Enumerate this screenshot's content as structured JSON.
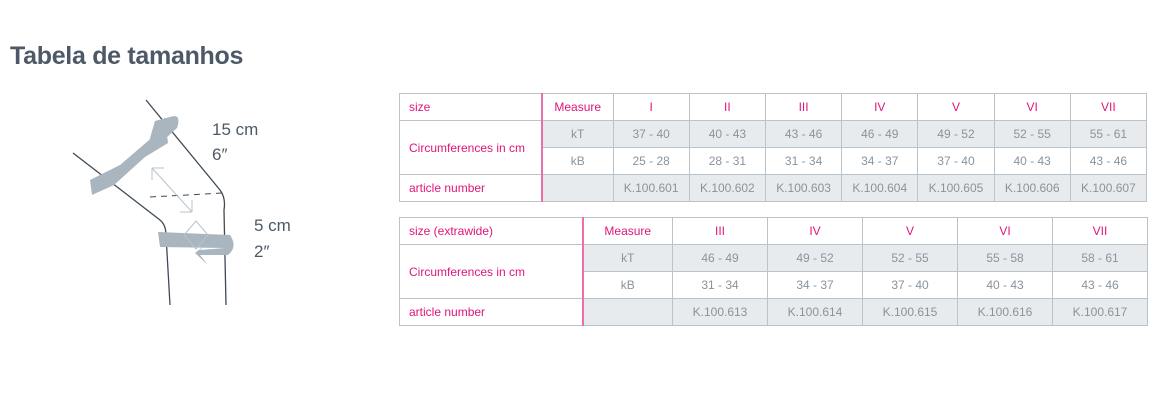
{
  "title": "Tabela de tamanhos",
  "illustration": {
    "upper_label_cm": "15 cm",
    "upper_label_in": "6″",
    "lower_label_cm": "5 cm",
    "lower_label_in": "2″"
  },
  "colors": {
    "accent": "#e0157a",
    "cell_fill": "#e8ebee",
    "text": "#8a939b",
    "border": "#b9c3cb"
  },
  "table1": {
    "header": [
      "size",
      "Measure",
      "I",
      "II",
      "III",
      "IV",
      "V",
      "VI",
      "VII"
    ],
    "circ_label": "Circumferences in cm",
    "kT": {
      "label": "kT",
      "values": [
        "37 - 40",
        "40 - 43",
        "43 - 46",
        "46 - 49",
        "49 - 52",
        "52 - 55",
        "55 - 61"
      ]
    },
    "kB": {
      "label": "kB",
      "values": [
        "25 - 28",
        "28 - 31",
        "31 - 34",
        "34 - 37",
        "37 - 40",
        "40 - 43",
        "43 - 46"
      ]
    },
    "article_label": "article number",
    "articles": [
      "K.100.601",
      "K.100.602",
      "K.100.603",
      "K.100.604",
      "K.100.605",
      "K.100.606",
      "K.100.607"
    ]
  },
  "table2": {
    "header": [
      "size (extrawide)",
      "Measure",
      "III",
      "IV",
      "V",
      "VI",
      "VII"
    ],
    "circ_label": "Circumferences in cm",
    "kT": {
      "label": "kT",
      "values": [
        "46 - 49",
        "49 - 52",
        "52 - 55",
        "55 - 58",
        "58 - 61"
      ]
    },
    "kB": {
      "label": "kB",
      "values": [
        "31 - 34",
        "34 - 37",
        "37 - 40",
        "40 - 43",
        "43 - 46"
      ]
    },
    "article_label": "article number",
    "articles": [
      "K.100.613",
      "K.100.614",
      "K.100.615",
      "K.100.616",
      "K.100.617"
    ]
  }
}
